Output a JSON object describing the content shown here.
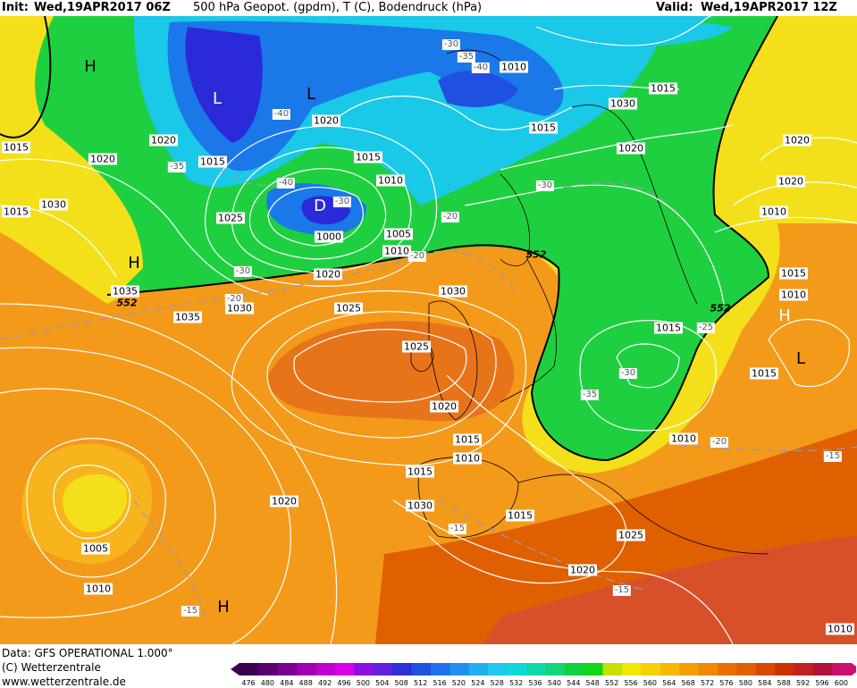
{
  "header": {
    "init_label": "Init:",
    "init_time": "Wed,19APR2017 06Z",
    "product": "500 hPa Geopot. (gpdm), T (C), Bodendruck (hPa)",
    "valid_label": "Valid:",
    "valid_time": "Wed,19APR2017 12Z"
  },
  "footer": {
    "data_source": "Data: GFS OPERATIONAL 1.000°",
    "copyright": "(C) Wetterzentrale",
    "website": "www.wetterzentrale.de"
  },
  "legend": {
    "values": [
      "476",
      "480",
      "484",
      "488",
      "492",
      "496",
      "500",
      "504",
      "508",
      "512",
      "516",
      "520",
      "524",
      "528",
      "532",
      "536",
      "540",
      "544",
      "548",
      "552",
      "556",
      "560",
      "564",
      "568",
      "572",
      "576",
      "580",
      "584",
      "588",
      "592",
      "596",
      "600"
    ],
    "colors": [
      "#3a0050",
      "#5a0070",
      "#7a008f",
      "#a000b0",
      "#c000d0",
      "#d800e6",
      "#8a10e6",
      "#6020e0",
      "#3030d8",
      "#2050e0",
      "#2070f0",
      "#2090f0",
      "#20b0f0",
      "#20c8f0",
      "#10d8d8",
      "#10d8a8",
      "#10d878",
      "#10d040",
      "#10d818",
      "#c8e000",
      "#f0e800",
      "#f8d000",
      "#f8b800",
      "#f4a000",
      "#f08800",
      "#e87000",
      "#e06000",
      "#d84800",
      "#cc3000",
      "#c02020",
      "#b0103a",
      "#cc1070"
    ]
  },
  "map": {
    "colors": {
      "ocean_orange": "#f49a1a",
      "dark_orange": "#e8741a",
      "light_orange": "#f8b41c",
      "yellow": "#f4e01a",
      "green": "#1ed040",
      "cyan": "#1ac8e8",
      "blue": "#1a78e8",
      "dark_blue": "#2a2ad8",
      "red_orange": "#d8502a",
      "isobar": "#ffffff",
      "coast": "#000000"
    },
    "pressure_labels": [
      "1015",
      "1020",
      "1015",
      "1020",
      "1015",
      "1030",
      "1035",
      "1025",
      "1020",
      "1015",
      "1010",
      "1005",
      "1010",
      "1020",
      "1025",
      "1030",
      "1035",
      "1030",
      "1025",
      "1020",
      "1015",
      "1010",
      "1000",
      "1005",
      "1010",
      "1020",
      "1030",
      "1015",
      "1015",
      "1025",
      "1020",
      "1030",
      "1020",
      "1015",
      "1010",
      "1015",
      "1020",
      "1020",
      "1010",
      "1015",
      "1010",
      "1015",
      "1010",
      "1015",
      "1010"
    ],
    "temp_labels": [
      "-30",
      "-35",
      "-40",
      "-40",
      "-35",
      "-40",
      "-30",
      "-20",
      "-30",
      "-20",
      "-20",
      "-30",
      "-25",
      "-30",
      "-35",
      "-20",
      "-15",
      "-15",
      "-15",
      "-15",
      "-20"
    ],
    "geopotential_labels": [
      "552",
      "552",
      "552"
    ],
    "pressure_systems": [
      "H",
      "L",
      "L",
      "D",
      "H",
      "H",
      "L",
      "H"
    ]
  }
}
